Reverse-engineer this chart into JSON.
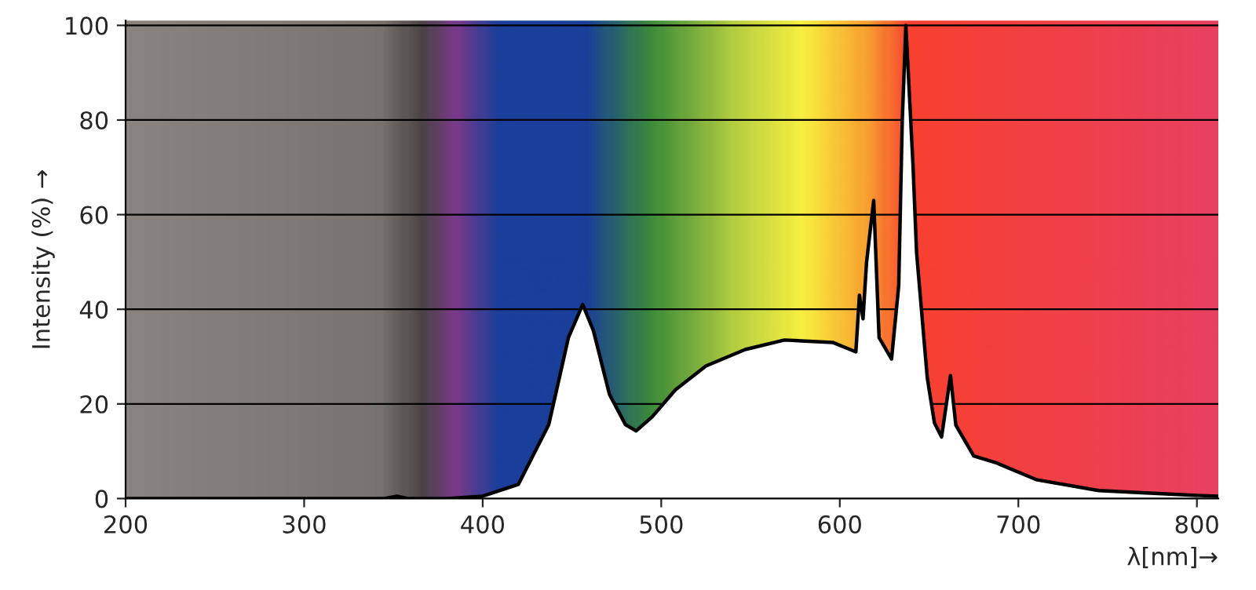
{
  "chart_data": {
    "type": "area",
    "xlabel": "λ[nm]→",
    "ylabel": "Intensity (%) →",
    "xlim": [
      200,
      812
    ],
    "ylim": [
      0,
      101
    ],
    "xticks": [
      200,
      300,
      400,
      500,
      600,
      700,
      800
    ],
    "yticks": [
      0,
      20,
      40,
      60,
      80,
      100
    ],
    "grid": "y",
    "series": [
      {
        "color": "#ffffff",
        "x": [
          200,
          300,
          345,
          352,
          358,
          380,
          400,
          420,
          437,
          448,
          456,
          462,
          471,
          480,
          486,
          495,
          508,
          525,
          547,
          569,
          596,
          609,
          611,
          613,
          615,
          619,
          622,
          629,
          633,
          635,
          637,
          641,
          643,
          649,
          653,
          657,
          662,
          665,
          675,
          688,
          710,
          745,
          798,
          812
        ],
        "values": [
          0,
          0,
          0,
          0.5,
          0,
          0,
          0.5,
          3,
          15.6,
          34,
          41,
          35.5,
          22,
          15.6,
          14.3,
          17.3,
          23,
          28,
          31.5,
          33.5,
          33,
          31,
          43,
          38,
          50,
          63,
          34,
          29.5,
          45,
          80,
          100,
          70.5,
          52,
          25.5,
          16,
          13,
          26,
          15.5,
          9,
          7.5,
          4,
          1.7,
          0.7,
          0.5
        ]
      }
    ]
  }
}
